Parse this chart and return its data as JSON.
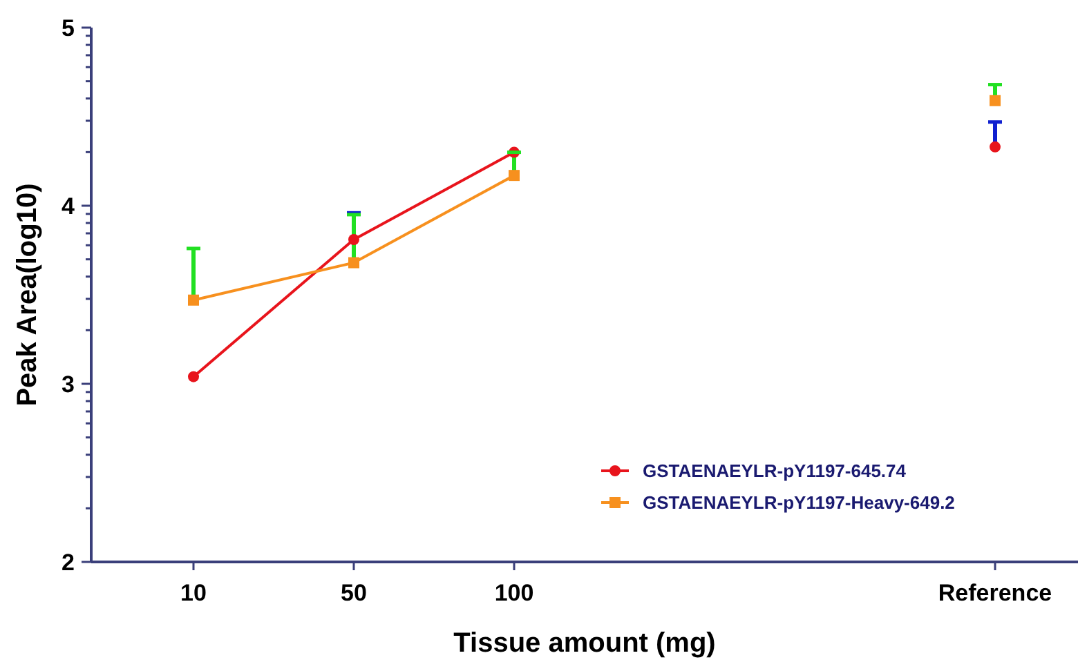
{
  "chart_data": {
    "type": "line",
    "xlabel": "Tissue amount (mg)",
    "ylabel": "Peak Area(log10)",
    "categories": [
      "10",
      "50",
      "100",
      null,
      null,
      "Reference"
    ],
    "ylim": [
      2,
      5
    ],
    "yticks": [
      2,
      {
        "value": 2.301,
        "label": null
      },
      {
        "value": 2.477,
        "label": null
      },
      {
        "value": 2.602,
        "label": null
      },
      {
        "value": 2.699,
        "label": null
      },
      {
        "value": 2.778,
        "label": null
      },
      {
        "value": 2.845,
        "label": null
      },
      {
        "value": 2.903,
        "label": null
      },
      {
        "value": 2.954,
        "label": null
      },
      3,
      {
        "value": 3.301,
        "label": null
      },
      {
        "value": 3.477,
        "label": null
      },
      {
        "value": 3.602,
        "label": null
      },
      {
        "value": 3.699,
        "label": null
      },
      {
        "value": 3.778,
        "label": null
      },
      {
        "value": 3.845,
        "label": null
      },
      {
        "value": 3.903,
        "label": null
      },
      {
        "value": 3.954,
        "label": null
      },
      4,
      {
        "value": 4.301,
        "label": null
      },
      {
        "value": 4.477,
        "label": null
      },
      {
        "value": 4.602,
        "label": null
      },
      {
        "value": 4.699,
        "label": null
      },
      {
        "value": 4.778,
        "label": null
      },
      {
        "value": 4.845,
        "label": null
      },
      {
        "value": 4.903,
        "label": null
      },
      {
        "value": 4.954,
        "label": null
      },
      5
    ],
    "grid": false,
    "legend": "bottom right",
    "series": [
      {
        "name": "GSTAENAEYLR-pY1197-645.74",
        "color": "#e8141c",
        "marker": "circle",
        "values": [
          3.04,
          3.81,
          4.3,
          null,
          null,
          4.33
        ],
        "errors": [
          null,
          [
            3.81,
            3.96
          ],
          null,
          null,
          null,
          [
            4.33,
            4.47
          ]
        ]
      },
      {
        "name": "GSTAENAEYLR-pY1197-Heavy-649.2",
        "color": "#f7901e",
        "marker": "square",
        "values": [
          3.47,
          3.68,
          4.17,
          null,
          null,
          4.59
        ],
        "errors": [
          [
            3.47,
            3.76
          ],
          [
            3.68,
            3.95
          ],
          [
            4.17,
            4.3
          ],
          null,
          null,
          [
            4.59,
            4.68
          ]
        ]
      }
    ]
  }
}
